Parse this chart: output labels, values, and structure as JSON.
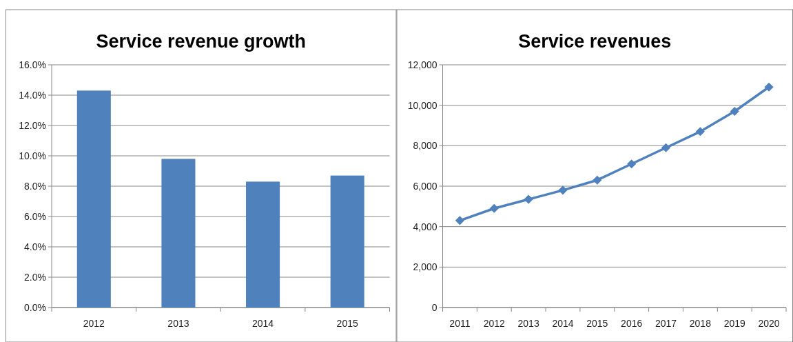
{
  "chart_data": [
    {
      "type": "bar",
      "title": "Service revenue growth",
      "categories": [
        "2012",
        "2013",
        "2014",
        "2015"
      ],
      "values": [
        14.3,
        9.8,
        8.3,
        8.7
      ],
      "color": "#4f81bd",
      "ylim": [
        0,
        16
      ],
      "yticks": [
        {
          "value": 0,
          "label": "0.0%"
        },
        {
          "value": 2,
          "label": "2.0%"
        },
        {
          "value": 4,
          "label": "4.0%"
        },
        {
          "value": 6,
          "label": "6.0%"
        },
        {
          "value": 8,
          "label": "8.0%"
        },
        {
          "value": 10,
          "label": "10.0%"
        },
        {
          "value": 12,
          "label": "12.0%"
        },
        {
          "value": 14,
          "label": "14.0%"
        },
        {
          "value": 16,
          "label": "16.0%"
        }
      ],
      "grid": "y"
    },
    {
      "type": "line",
      "title": "Service revenues",
      "categories": [
        "2011",
        "2012",
        "2013",
        "2014",
        "2015",
        "2016",
        "2017",
        "2018",
        "2019",
        "2020"
      ],
      "values": [
        4300,
        4900,
        5350,
        5800,
        6300,
        7100,
        7900,
        8700,
        9700,
        10900
      ],
      "color": "#4f81bd",
      "marker": "diamond",
      "ylim": [
        0,
        12000
      ],
      "yticks": [
        0,
        {
          "value": 2000,
          "label": "2,000"
        },
        {
          "value": 4000,
          "label": "4,000"
        },
        {
          "value": 6000,
          "label": "6,000"
        },
        {
          "value": 8000,
          "label": "8,000"
        },
        {
          "value": 10000,
          "label": "10,000"
        },
        {
          "value": 12000,
          "label": "12,000"
        }
      ],
      "grid": "y"
    }
  ]
}
